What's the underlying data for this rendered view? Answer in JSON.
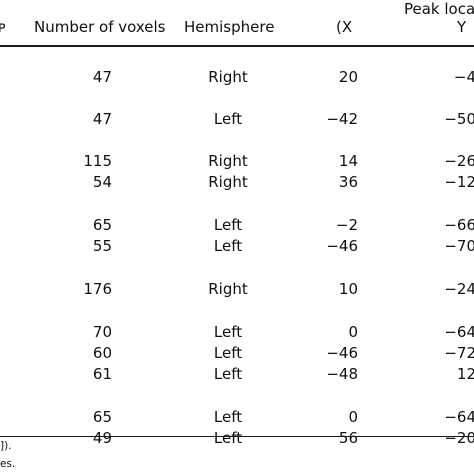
{
  "header": {
    "cut_left": "ᴘ",
    "number_of_voxels": "Number of voxels",
    "hemisphere": "Hemisphere",
    "peak_location": "Peak locat",
    "x": "(X",
    "y": "Y"
  },
  "rows": [
    {
      "voxels": "47",
      "hemisphere": "Right",
      "x": "20",
      "y": "−4"
    },
    {
      "voxels": "47",
      "hemisphere": "Left",
      "x": "−42",
      "y": "−50"
    },
    {
      "voxels": "115",
      "hemisphere": "Right",
      "x": "14",
      "y": "−26"
    },
    {
      "voxels": "54",
      "hemisphere": "Right",
      "x": "36",
      "y": "−12"
    },
    {
      "voxels": "65",
      "hemisphere": "Left",
      "x": "−2",
      "y": "−66"
    },
    {
      "voxels": "55",
      "hemisphere": "Left",
      "x": "−46",
      "y": "−70"
    },
    {
      "voxels": "176",
      "hemisphere": "Right",
      "x": "10",
      "y": "−24"
    },
    {
      "voxels": "70",
      "hemisphere": "Left",
      "x": "0",
      "y": "−64"
    },
    {
      "voxels": "60",
      "hemisphere": "Left",
      "x": "−46",
      "y": "−72"
    },
    {
      "voxels": "61",
      "hemisphere": "Left",
      "x": "−48",
      "y": "12"
    },
    {
      "voxels": "65",
      "hemisphere": "Left",
      "x": "0",
      "y": "−64"
    },
    {
      "voxels": "49",
      "hemisphere": "Left",
      "x": "56",
      "y": "−20"
    }
  ],
  "footnotes": [
    "]).",
    "es."
  ]
}
